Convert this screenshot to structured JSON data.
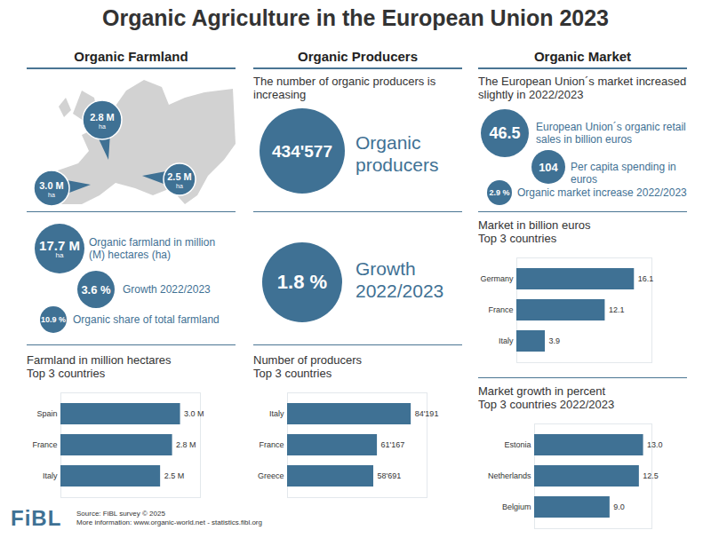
{
  "title": "Organic Agriculture in the European Union 2023",
  "sections": {
    "farmland": {
      "heading": "Organic Farmland",
      "map_bubbles": [
        {
          "value": "2.8 M",
          "unit": "ha"
        },
        {
          "value": "3.0 M",
          "unit": "ha"
        },
        {
          "value": "2.5 M",
          "unit": "ha"
        }
      ],
      "stats": [
        {
          "value": "17.7 M",
          "unit": "ha",
          "label": "Organic farmland in million (M) hectares (ha)"
        },
        {
          "value": "3.6 %",
          "label": "Growth 2022/2023"
        },
        {
          "value": "10.9 %",
          "label": "Organic share of total farmland"
        }
      ]
    },
    "producers": {
      "heading": "Organic Producers",
      "intro": "The number of organic producers is increasing",
      "stats": [
        {
          "value": "434'577",
          "label": "Organic producers"
        },
        {
          "value": "1.8 %",
          "label": "Growth 2022/2023"
        }
      ]
    },
    "market": {
      "heading": "Organic Market",
      "intro": "The European Union´s market increased slightly in 2022/2023",
      "stats": [
        {
          "value": "46.5",
          "label": "European Union´s organic retail sales in billion euros"
        },
        {
          "value": "104",
          "label": "Per capita spending in euros"
        },
        {
          "value": "2.9 %",
          "label": "Organic market increase 2022/2023"
        }
      ]
    }
  },
  "chart_data": [
    {
      "type": "bar",
      "title": "Farmland in million hectares",
      "subtitle": "Top 3 countries",
      "orientation": "horizontal",
      "categories": [
        "Spain",
        "France",
        "Italy"
      ],
      "values": [
        3.0,
        2.8,
        2.5
      ],
      "value_labels": [
        "3.0 M",
        "2.8 M",
        "2.5 M"
      ],
      "data_labels": true,
      "tick_labels": "y",
      "color": "#3f7194",
      "xlim": [
        0,
        3.5
      ]
    },
    {
      "type": "bar",
      "title": "Number of producers",
      "subtitle": "Top 3 countries",
      "orientation": "horizontal",
      "categories": [
        "Italy",
        "France",
        "Greece"
      ],
      "values": [
        84191,
        61167,
        58691
      ],
      "value_labels": [
        "84'191",
        "61'167",
        "58'691"
      ],
      "data_labels": true,
      "tick_labels": "y",
      "color": "#3f7194",
      "xlim": [
        0,
        95000
      ]
    },
    {
      "type": "bar",
      "title": "Market in billion euros",
      "subtitle": "Top 3 countries",
      "orientation": "horizontal",
      "categories": [
        "Germany",
        "France",
        "Italy"
      ],
      "values": [
        16.1,
        12.1,
        3.9
      ],
      "data_labels": true,
      "tick_labels": "y",
      "color": "#3f7194",
      "xlim": [
        0,
        18.5
      ]
    },
    {
      "type": "bar",
      "title": "Market growth in percent",
      "subtitle": "Top 3 countries 2022/2023",
      "orientation": "horizontal",
      "categories": [
        "Estonia",
        "Netherlands",
        "Belgium"
      ],
      "values": [
        13.0,
        12.5,
        9.0
      ],
      "value_labels": [
        "13.0",
        "12.5",
        "9.0"
      ],
      "data_labels": true,
      "tick_labels": "y",
      "color": "#3f7194",
      "xlim": [
        0,
        14
      ]
    }
  ],
  "footer": {
    "logo": "FiBL",
    "source": "Source: FiBL survey © 2025",
    "more": "More information: www.organic-world.net - statistics.fibl.org"
  }
}
